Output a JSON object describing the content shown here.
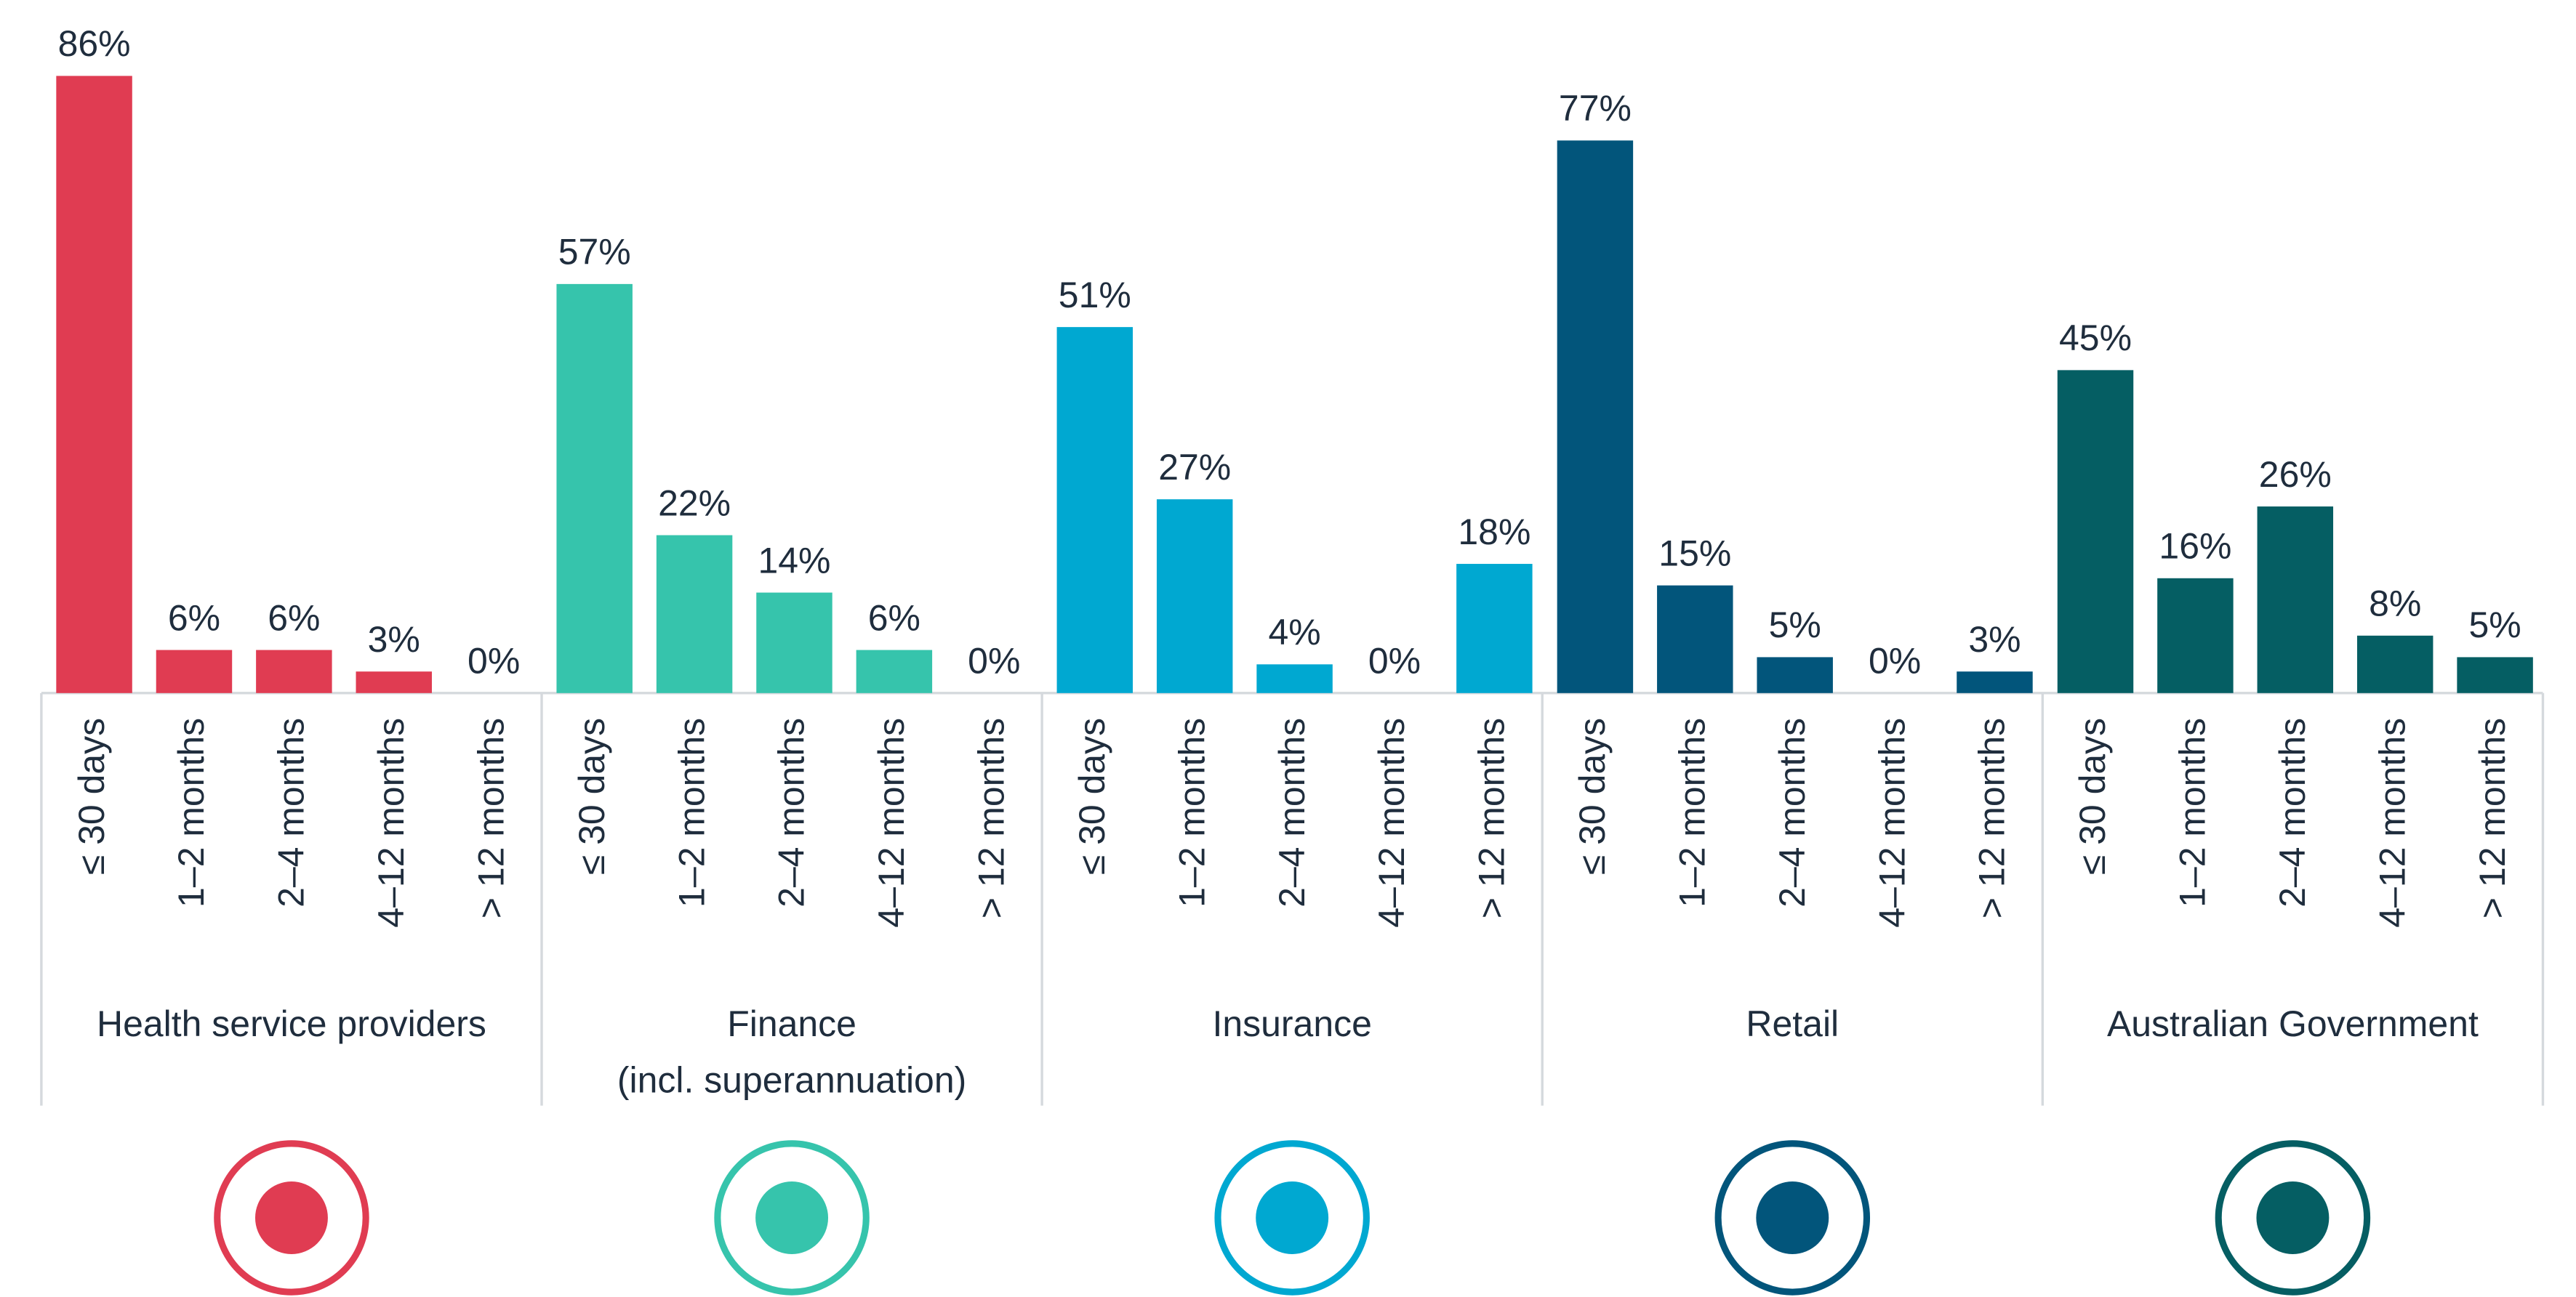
{
  "chart_data": {
    "type": "bar",
    "groups": [
      {
        "name_lines": [
          "Health service providers"
        ],
        "color": "#e03c52",
        "categories": [
          "≤ 30 days",
          "1–2 months",
          "2–4 months",
          "4–12 months",
          "> 12 months"
        ],
        "values": [
          86,
          6,
          6,
          3,
          0
        ],
        "value_labels": [
          "86%",
          "6%",
          "6%",
          "3%",
          "0%"
        ]
      },
      {
        "name_lines": [
          "Finance",
          "(incl. superannuation)"
        ],
        "color": "#36c4ac",
        "categories": [
          "≤ 30 days",
          "1–2 months",
          "2–4 months",
          "4–12 months",
          "> 12 months"
        ],
        "values": [
          57,
          22,
          14,
          6,
          0
        ],
        "value_labels": [
          "57%",
          "22%",
          "14%",
          "6%",
          "0%"
        ]
      },
      {
        "name_lines": [
          "Insurance"
        ],
        "color": "#00a8d1",
        "categories": [
          "≤ 30 days",
          "1–2 months",
          "2–4 months",
          "4–12 months",
          "> 12 months"
        ],
        "values": [
          51,
          27,
          4,
          0,
          18
        ],
        "value_labels": [
          "51%",
          "27%",
          "4%",
          "0%",
          "18%"
        ]
      },
      {
        "name_lines": [
          "Retail"
        ],
        "color": "#02557b",
        "categories": [
          "≤ 30 days",
          "1–2 months",
          "2–4 months",
          "4–12 months",
          "> 12 months"
        ],
        "values": [
          77,
          15,
          5,
          0,
          3
        ],
        "value_labels": [
          "77%",
          "15%",
          "5%",
          "0%",
          "3%"
        ]
      },
      {
        "name_lines": [
          "Australian Government"
        ],
        "color": "#055e63",
        "categories": [
          "≤ 30 days",
          "1–2 months",
          "2–4 months",
          "4–12 months",
          "> 12 months"
        ],
        "values": [
          45,
          16,
          26,
          8,
          5
        ],
        "value_labels": [
          "45%",
          "16%",
          "26%",
          "8%",
          "5%"
        ]
      }
    ]
  }
}
